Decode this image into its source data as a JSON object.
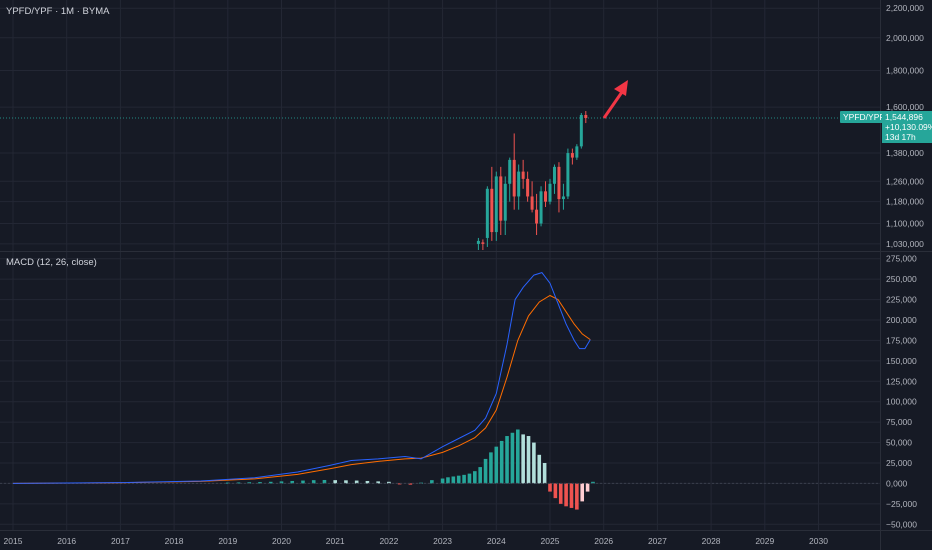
{
  "header": {
    "symbol_title": "YPFD/YPF · 1M · BYMA"
  },
  "macd_header": {
    "title": "MACD (12, 26, close)"
  },
  "last_price": {
    "badge_label": "YPFD/YPF",
    "price": "1,544,896",
    "change": "+10,130.09%",
    "countdown": "13d 17h"
  },
  "colors": {
    "background": "#161a25",
    "up": "#26a69a",
    "down": "#ef5350",
    "up_light": "#b2dfdb",
    "down_light": "#ffcdd2",
    "macd_line": "#2962ff",
    "signal_line": "#ff6d00",
    "grid": "#232734",
    "axis_text": "#b2b5be",
    "arrow": "#f23645"
  },
  "chart_data": [
    {
      "type": "candlestick",
      "title": "YPFD/YPF · 1M · BYMA",
      "y_scale": "log",
      "y_ticks": [
        1030000,
        1100000,
        1180000,
        1260000,
        1380000,
        1600000,
        1800000,
        2000000,
        2200000
      ],
      "y_tick_labels": [
        "1,030,000",
        "1,100,000",
        "1,180,000",
        "1,260,000",
        "1,380,000",
        "1,600,000",
        "1,800,000",
        "2,000,000",
        "2,200,000"
      ],
      "x_tick_labels": [
        "2015",
        "2016",
        "2017",
        "2018",
        "2019",
        "2020",
        "2021",
        "2022",
        "2023",
        "2024",
        "2025",
        "2026",
        "2027",
        "2028",
        "2029",
        "2030"
      ],
      "ylim": [
        1010000,
        2230000
      ],
      "candles": [
        {
          "t": "2023-09",
          "o": 1030000,
          "h": 1050000,
          "l": 1010000,
          "c": 1040000
        },
        {
          "t": "2023-10",
          "o": 1035000,
          "h": 1045000,
          "l": 1010000,
          "c": 1030000
        },
        {
          "t": "2023-11",
          "o": 1050000,
          "h": 1240000,
          "l": 1020000,
          "c": 1230000
        },
        {
          "t": "2023-12",
          "o": 1230000,
          "h": 1320000,
          "l": 1040000,
          "c": 1070000
        },
        {
          "t": "2024-01",
          "o": 1070000,
          "h": 1300000,
          "l": 1040000,
          "c": 1280000
        },
        {
          "t": "2024-02",
          "o": 1280000,
          "h": 1320000,
          "l": 1060000,
          "c": 1110000
        },
        {
          "t": "2024-03",
          "o": 1110000,
          "h": 1280000,
          "l": 1060000,
          "c": 1250000
        },
        {
          "t": "2024-04",
          "o": 1250000,
          "h": 1360000,
          "l": 1180000,
          "c": 1350000
        },
        {
          "t": "2024-05",
          "o": 1350000,
          "h": 1470000,
          "l": 1150000,
          "c": 1200000
        },
        {
          "t": "2024-06",
          "o": 1200000,
          "h": 1330000,
          "l": 1150000,
          "c": 1300000
        },
        {
          "t": "2024-07",
          "o": 1300000,
          "h": 1350000,
          "l": 1230000,
          "c": 1270000
        },
        {
          "t": "2024-08",
          "o": 1270000,
          "h": 1300000,
          "l": 1180000,
          "c": 1200000
        },
        {
          "t": "2024-09",
          "o": 1200000,
          "h": 1260000,
          "l": 1140000,
          "c": 1150000
        },
        {
          "t": "2024-10",
          "o": 1150000,
          "h": 1210000,
          "l": 1060000,
          "c": 1100000
        },
        {
          "t": "2024-11",
          "o": 1100000,
          "h": 1240000,
          "l": 1090000,
          "c": 1220000
        },
        {
          "t": "2024-12",
          "o": 1220000,
          "h": 1260000,
          "l": 1160000,
          "c": 1180000
        },
        {
          "t": "2025-01",
          "o": 1180000,
          "h": 1270000,
          "l": 1170000,
          "c": 1250000
        },
        {
          "t": "2025-02",
          "o": 1250000,
          "h": 1330000,
          "l": 1210000,
          "c": 1320000
        },
        {
          "t": "2025-03",
          "o": 1320000,
          "h": 1340000,
          "l": 1140000,
          "c": 1190000
        },
        {
          "t": "2025-04",
          "o": 1190000,
          "h": 1250000,
          "l": 1150000,
          "c": 1200000
        },
        {
          "t": "2025-05",
          "o": 1200000,
          "h": 1400000,
          "l": 1190000,
          "c": 1380000
        },
        {
          "t": "2025-06",
          "o": 1380000,
          "h": 1400000,
          "l": 1330000,
          "c": 1360000
        },
        {
          "t": "2025-07",
          "o": 1360000,
          "h": 1420000,
          "l": 1350000,
          "c": 1410000
        },
        {
          "t": "2025-08",
          "o": 1410000,
          "h": 1570000,
          "l": 1400000,
          "c": 1560000
        },
        {
          "t": "2025-09",
          "o": 1560000,
          "h": 1580000,
          "l": 1520000,
          "c": 1544896
        }
      ],
      "last_price": 1544896
    },
    {
      "type": "macd",
      "title": "MACD (12, 26, close)",
      "y_ticks": [
        -50000,
        -25000,
        0,
        25000,
        50000,
        75000,
        100000,
        125000,
        150000,
        175000,
        200000,
        225000,
        250000,
        275000
      ],
      "y_tick_labels": [
        "−50,000",
        "−25,000",
        "0,000",
        "25,000",
        "50,000",
        "75,000",
        "100,000",
        "125,000",
        "150,000",
        "175,000",
        "200,000",
        "225,000",
        "250,000",
        "275,000"
      ],
      "ylim": [
        -57000,
        282000
      ],
      "macd_line": [
        [
          2015.0,
          0
        ],
        [
          2017.0,
          1000
        ],
        [
          2018.5,
          3000
        ],
        [
          2019.5,
          7000
        ],
        [
          2020.3,
          14000
        ],
        [
          2020.9,
          22000
        ],
        [
          2021.3,
          28000
        ],
        [
          2021.8,
          30000
        ],
        [
          2022.3,
          33000
        ],
        [
          2022.6,
          30000
        ],
        [
          2023.0,
          45000
        ],
        [
          2023.3,
          55000
        ],
        [
          2023.6,
          65000
        ],
        [
          2023.8,
          80000
        ],
        [
          2024.0,
          110000
        ],
        [
          2024.2,
          170000
        ],
        [
          2024.35,
          225000
        ],
        [
          2024.5,
          240000
        ],
        [
          2024.7,
          255000
        ],
        [
          2024.85,
          258000
        ],
        [
          2025.0,
          245000
        ],
        [
          2025.15,
          220000
        ],
        [
          2025.3,
          195000
        ],
        [
          2025.45,
          175000
        ],
        [
          2025.55,
          165000
        ],
        [
          2025.65,
          165000
        ],
        [
          2025.75,
          176000
        ]
      ],
      "signal_line": [
        [
          2015.0,
          0
        ],
        [
          2017.0,
          800
        ],
        [
          2018.5,
          2500
        ],
        [
          2019.5,
          5500
        ],
        [
          2020.3,
          11000
        ],
        [
          2020.9,
          18000
        ],
        [
          2021.3,
          23000
        ],
        [
          2021.8,
          27000
        ],
        [
          2022.3,
          30000
        ],
        [
          2022.6,
          31000
        ],
        [
          2023.0,
          38000
        ],
        [
          2023.3,
          46000
        ],
        [
          2023.6,
          56000
        ],
        [
          2023.8,
          68000
        ],
        [
          2024.0,
          90000
        ],
        [
          2024.2,
          130000
        ],
        [
          2024.4,
          175000
        ],
        [
          2024.6,
          205000
        ],
        [
          2024.8,
          222000
        ],
        [
          2025.0,
          230000
        ],
        [
          2025.15,
          225000
        ],
        [
          2025.3,
          210000
        ],
        [
          2025.45,
          195000
        ],
        [
          2025.6,
          183000
        ],
        [
          2025.75,
          176000
        ]
      ],
      "histogram": [
        [
          2019.0,
          1000
        ],
        [
          2019.2,
          1200
        ],
        [
          2019.4,
          1500
        ],
        [
          2019.6,
          1700
        ],
        [
          2019.8,
          2000
        ],
        [
          2020.0,
          2500
        ],
        [
          2020.2,
          3000
        ],
        [
          2020.4,
          3500
        ],
        [
          2020.6,
          4000
        ],
        [
          2020.8,
          4200
        ],
        [
          2021.0,
          4000
        ],
        [
          2021.2,
          3800
        ],
        [
          2021.4,
          3500
        ],
        [
          2021.6,
          3000
        ],
        [
          2021.8,
          2500
        ],
        [
          2022.0,
          2000
        ],
        [
          2022.2,
          -1000
        ],
        [
          2022.4,
          -1500
        ],
        [
          2022.6,
          1000
        ],
        [
          2022.8,
          4000
        ],
        [
          2023.0,
          6000
        ],
        [
          2023.1,
          7500
        ],
        [
          2023.2,
          8500
        ],
        [
          2023.3,
          9500
        ],
        [
          2023.4,
          10500
        ],
        [
          2023.5,
          12000
        ],
        [
          2023.6,
          15000
        ],
        [
          2023.7,
          20000
        ],
        [
          2023.8,
          30000
        ],
        [
          2023.9,
          38000
        ],
        [
          2024.0,
          45000
        ],
        [
          2024.1,
          52000
        ],
        [
          2024.2,
          58000
        ],
        [
          2024.3,
          62000
        ],
        [
          2024.4,
          66000
        ],
        [
          2024.5,
          60000
        ],
        [
          2024.6,
          58000
        ],
        [
          2024.7,
          50000
        ],
        [
          2024.8,
          35000
        ],
        [
          2024.9,
          25000
        ],
        [
          2025.0,
          -10000
        ],
        [
          2025.1,
          -18000
        ],
        [
          2025.2,
          -25000
        ],
        [
          2025.3,
          -28000
        ],
        [
          2025.4,
          -30000
        ],
        [
          2025.5,
          -32000
        ],
        [
          2025.6,
          -22000
        ],
        [
          2025.7,
          -10000
        ],
        [
          2025.8,
          2000
        ]
      ]
    }
  ]
}
